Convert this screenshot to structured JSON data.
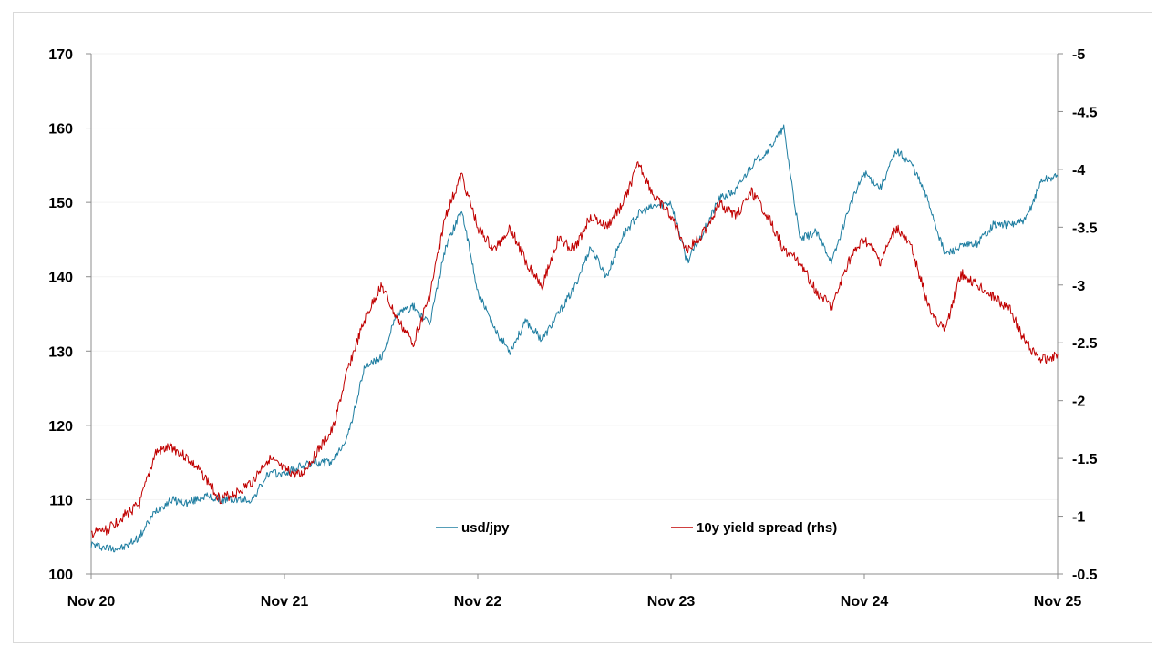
{
  "chart_data": {
    "type": "line",
    "title": "",
    "xlabel": "",
    "ylabel": "",
    "x_ticks": [
      "Nov 20",
      "Nov 21",
      "Nov 22",
      "Nov 23",
      "Nov 24",
      "Nov 25"
    ],
    "y_left": {
      "range": [
        100,
        170
      ],
      "ticks": [
        "100",
        "110",
        "120",
        "130",
        "140",
        "150",
        "160",
        "170"
      ]
    },
    "y_right": {
      "range": [
        -0.5,
        -5
      ],
      "inverted": true,
      "ticks": [
        "-0.5",
        "-1",
        "-1.5",
        "-2",
        "-2.5",
        "-3",
        "-3.5",
        "-4",
        "-4.5",
        "-5"
      ]
    },
    "grid": "horizontal",
    "legend_position": "bottom-center",
    "series": [
      {
        "name": "usd/jpy",
        "axis": "left",
        "color": "#1f7ea1",
        "x": [
          "2020-11",
          "2020-12",
          "2021-01",
          "2021-02",
          "2021-03",
          "2021-04",
          "2021-05",
          "2021-06",
          "2021-07",
          "2021-08",
          "2021-09",
          "2021-10",
          "2021-11",
          "2021-12",
          "2022-01",
          "2022-02",
          "2022-03",
          "2022-04",
          "2022-05",
          "2022-06",
          "2022-07",
          "2022-08",
          "2022-09",
          "2022-10",
          "2022-11",
          "2022-12",
          "2023-01",
          "2023-02",
          "2023-03",
          "2023-04",
          "2023-05",
          "2023-06",
          "2023-07",
          "2023-08",
          "2023-09",
          "2023-10",
          "2023-11",
          "2023-12",
          "2024-01",
          "2024-02",
          "2024-03",
          "2024-04",
          "2024-05",
          "2024-06",
          "2024-07",
          "2024-08",
          "2024-09",
          "2024-10",
          "2024-11",
          "2024-12",
          "2025-01",
          "2025-02",
          "2025-03",
          "2025-04",
          "2025-05",
          "2025-06",
          "2025-07",
          "2025-08",
          "2025-09",
          "2025-10",
          "2025-11"
        ],
        "values": [
          104,
          103.5,
          103.5,
          105,
          108.5,
          110,
          109.5,
          110.5,
          110,
          110,
          110,
          113.5,
          113.5,
          114.5,
          115,
          115,
          119,
          128,
          129,
          135,
          136,
          133.5,
          144,
          149,
          138,
          133,
          130,
          134,
          131.5,
          135,
          138.5,
          144,
          140,
          145.5,
          148.5,
          149.5,
          150,
          142,
          146,
          150.5,
          151.5,
          155,
          157,
          160,
          145,
          146,
          142,
          149,
          154,
          152,
          157,
          155,
          150,
          143,
          144,
          144.5,
          147,
          147,
          147.5,
          153,
          153.5
        ]
      },
      {
        "name": "10y yield spread (rhs)",
        "axis": "right",
        "color": "#c00000",
        "x": [
          "2020-11",
          "2020-12",
          "2021-01",
          "2021-02",
          "2021-03",
          "2021-04",
          "2021-05",
          "2021-06",
          "2021-07",
          "2021-08",
          "2021-09",
          "2021-10",
          "2021-11",
          "2021-12",
          "2022-01",
          "2022-02",
          "2022-03",
          "2022-04",
          "2022-05",
          "2022-06",
          "2022-07",
          "2022-08",
          "2022-09",
          "2022-10",
          "2022-11",
          "2022-12",
          "2023-01",
          "2023-02",
          "2023-03",
          "2023-04",
          "2023-05",
          "2023-06",
          "2023-07",
          "2023-08",
          "2023-09",
          "2023-10",
          "2023-11",
          "2023-12",
          "2024-01",
          "2024-02",
          "2024-03",
          "2024-04",
          "2024-05",
          "2024-06",
          "2024-07",
          "2024-08",
          "2024-09",
          "2024-10",
          "2024-11",
          "2024-12",
          "2025-01",
          "2025-02",
          "2025-03",
          "2025-04",
          "2025-05",
          "2025-06",
          "2025-07",
          "2025-08",
          "2025-09",
          "2025-10",
          "2025-11"
        ],
        "values": [
          -0.85,
          -0.88,
          -1.0,
          -1.1,
          -1.55,
          -1.6,
          -1.5,
          -1.35,
          -1.15,
          -1.2,
          -1.3,
          -1.5,
          -1.4,
          -1.35,
          -1.55,
          -1.75,
          -2.3,
          -2.7,
          -3.0,
          -2.7,
          -2.5,
          -2.9,
          -3.6,
          -3.95,
          -3.5,
          -3.3,
          -3.5,
          -3.2,
          -3.0,
          -3.4,
          -3.3,
          -3.6,
          -3.5,
          -3.7,
          -4.05,
          -3.75,
          -3.6,
          -3.3,
          -3.45,
          -3.7,
          -3.6,
          -3.8,
          -3.6,
          -3.3,
          -3.2,
          -2.95,
          -2.8,
          -3.2,
          -3.4,
          -3.2,
          -3.5,
          -3.3,
          -2.8,
          -2.6,
          -3.1,
          -3.0,
          -2.9,
          -2.8,
          -2.5,
          -2.35,
          -2.4
        ]
      }
    ]
  }
}
